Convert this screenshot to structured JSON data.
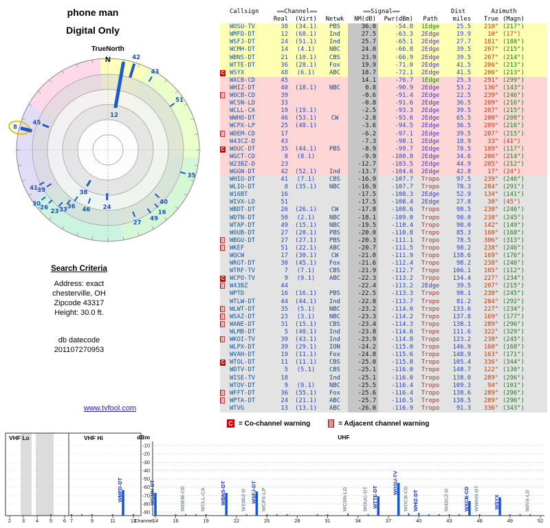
{
  "header": {
    "title": "phone man",
    "subtitle": "Digital Only"
  },
  "search": {
    "heading": "Search Criteria",
    "lines": [
      "Address: exact",
      "chesterville, OH",
      "Zipcode 43317",
      "Height: 30.0 ft."
    ],
    "datecode_label": "db datecode",
    "datecode": "201107270953",
    "link": "www.tvfool.com"
  },
  "legend": {
    "c": "C",
    "co": "= Co-channel warning",
    "adj": "= Adjacent channel warning"
  },
  "colors": {
    "accent_blue": "#1456c8",
    "warning_red": "#cc0000",
    "band_strong": "#ffffb4",
    "band_weak": "#ffd6d6",
    "band_fringe": "#e3e3e3"
  },
  "table": {
    "headers": {
      "callsign": "Callsign",
      "channel": "Channel",
      "signal": "Signal",
      "dist": "Dist",
      "azimuth": "Azimuth",
      "real": "Real",
      "virt": "(Virt)",
      "netwk": "Netwk",
      "nm": "NM(dB)",
      "pwr": "Pwr(dBm)",
      "path": "Path",
      "miles": "miles",
      "true": "True",
      "magn": "(Magn)",
      "dash": "▬▬"
    },
    "columns": [
      "marker",
      "callsign",
      "real",
      "virt",
      "netwk",
      "nm_db",
      "pwr_dbm",
      "path",
      "dist_miles",
      "azimuth_true",
      "azimuth_magn",
      "band"
    ],
    "rows": [
      [
        "",
        "WOSU-TV",
        "38",
        "(34.1)",
        "PBS",
        "36.0",
        "-54.8",
        "1Edge",
        "25.5",
        "210°",
        "(217°)",
        "y"
      ],
      [
        "",
        "WMFD-DT",
        "12",
        "(68.1)",
        "Ind",
        "27.5",
        "-63.3",
        "2Edge",
        "19.9",
        "10°",
        "(17°)",
        "y",
        "r"
      ],
      [
        "",
        "WSFJ-DT",
        "24",
        "(51.1)",
        "Ind",
        "25.7",
        "-65.1",
        "2Edge",
        "27.7",
        "181°",
        "(188°)",
        "y"
      ],
      [
        "",
        "WCMH-DT",
        "14",
        "(4.1)",
        "NBC",
        "24.0",
        "-66.8",
        "2Edge",
        "39.5",
        "207°",
        "(215°)",
        "y"
      ],
      [
        "",
        "WBNS-DT",
        "21",
        "(10.1)",
        "CBS",
        "23.9",
        "-66.9",
        "2Edge",
        "39.5",
        "207°",
        "(214°)",
        "y"
      ],
      [
        "",
        "WTTE-DT",
        "36",
        "(28.1)",
        "Fox",
        "19.9",
        "-71.0",
        "2Edge",
        "41.5",
        "206°",
        "(213°)",
        "y"
      ],
      [
        "C",
        "WSYX",
        "48",
        "(6.1)",
        "ABC",
        "18.7",
        "-72.1",
        "2Edge",
        "41.5",
        "206°",
        "(213°)",
        "y"
      ],
      [
        "",
        "WXCB-CD",
        "45",
        "",
        "",
        "14.1",
        "-76.7",
        "1Edge",
        "25.3",
        "291°",
        "(299°)",
        "p"
      ],
      [
        "",
        "WHIZ-DT",
        "40",
        "(18.1)",
        "NBC",
        "0.8",
        "-90.9",
        "2Edge",
        "53.2",
        "136°",
        "(143°)",
        "p"
      ],
      [
        "A",
        "WOCB-CD",
        "39",
        "",
        "",
        "-0.6",
        "-91.4",
        "2Edge",
        "22.5",
        "239°",
        "(246°)",
        "p"
      ],
      [
        "",
        "WCSN-LD",
        "33",
        "",
        "",
        "-0.8",
        "-91.6",
        "2Edge",
        "36.5",
        "209°",
        "(216°)",
        "p"
      ],
      [
        "",
        "WCLL-CA",
        "19",
        "(19.1)",
        "",
        "-2.5",
        "-93.3",
        "2Edge",
        "39.5",
        "207°",
        "(215°)",
        "p"
      ],
      [
        "",
        "WWHO-DT",
        "46",
        "(53.1)",
        "CW",
        "-2.8",
        "-93.6",
        "2Edge",
        "65.5",
        "200°",
        "(208°)",
        "p"
      ],
      [
        "",
        "WCPX-LP",
        "25",
        "(48.1)",
        "",
        "-3.6",
        "-94.5",
        "2Edge",
        "36.5",
        "209°",
        "(216°)",
        "p"
      ],
      [
        "A",
        "WDEM-CD",
        "17",
        "",
        "",
        "-6.2",
        "-97.1",
        "2Edge",
        "39.5",
        "207°",
        "(215°)",
        "p"
      ],
      [
        "",
        "W43CZ-D",
        "43",
        "",
        "",
        "-7.3",
        "-98.1",
        "2Edge",
        "18.9",
        "33°",
        "(41°)",
        "p",
        "r"
      ],
      [
        "C",
        "WOUC-DT",
        "35",
        "(44.1)",
        "PBS",
        "-8.9",
        "-99.7",
        "2Edge",
        "78.5",
        "109°",
        "(117°)",
        "p"
      ],
      [
        "",
        "WGCT-CD",
        "8",
        "(8.1)",
        "",
        "-9.9",
        "-100.8",
        "2Edge",
        "34.6",
        "206°",
        "(214°)",
        "p"
      ],
      [
        "",
        "W23BZ-D",
        "23",
        "",
        "",
        "-12.7",
        "-103.5",
        "2Edge",
        "44.9",
        "205°",
        "(212°)",
        "p"
      ],
      [
        "",
        "WGGN-DT",
        "42",
        "(52.1)",
        "Ind",
        "-13.7",
        "-104.6",
        "2Edge",
        "42.8",
        "17°",
        "(24°)",
        "p",
        "r"
      ],
      [
        "",
        "WHIO-DT",
        "41",
        "(7.1)",
        "CBS",
        "-16.9",
        "-107.7",
        "Tropo",
        "97.5",
        "239°",
        "(246°)",
        "g"
      ],
      [
        "",
        "WLIO-DT",
        "8",
        "(35.1)",
        "NBC",
        "-16.9",
        "-107.7",
        "Tropo",
        "78.3",
        "284°",
        "(291°)",
        "g"
      ],
      [
        "",
        "W16BT",
        "16",
        "",
        "",
        "-17.5",
        "-108.3",
        "2Edge",
        "52.9",
        "134°",
        "(141°)",
        "g"
      ],
      [
        "",
        "WIVX-LD",
        "51",
        "",
        "",
        "-17.5",
        "-108.4",
        "2Edge",
        "27.8",
        "38°",
        "(45°)",
        "g",
        "r"
      ],
      [
        "",
        "WBDT-DT",
        "26",
        "(26.1)",
        "CW",
        "-17.8",
        "-108.6",
        "Tropo",
        "98.5",
        "238°",
        "(246°)",
        "g"
      ],
      [
        "",
        "WDTN-DT",
        "50",
        "(2.1)",
        "NBC",
        "-18.1",
        "-109.0",
        "Tropo",
        "98.0",
        "238°",
        "(245°)",
        "g"
      ],
      [
        "",
        "WTAP-DT",
        "49",
        "(15.1)",
        "NBC",
        "-19.5",
        "-110.4",
        "Tropo",
        "98.0",
        "142°",
        "(149°)",
        "g"
      ],
      [
        "",
        "WOUB-DT",
        "27",
        "(20.1)",
        "PBS",
        "-20.0",
        "-110.8",
        "Tropo",
        "85.3",
        "160°",
        "(168°)",
        "g"
      ],
      [
        "A",
        "WBGU-DT",
        "27",
        "(27.1)",
        "PBS",
        "-20.3",
        "-111.1",
        "Tropo",
        "78.5",
        "306°",
        "(313°)",
        "g"
      ],
      [
        "A",
        "WKEF",
        "51",
        "(22.1)",
        "ABC",
        "-20.7",
        "-111.5",
        "Tropo",
        "98.2",
        "238°",
        "(246°)",
        "g"
      ],
      [
        "",
        "WQCW",
        "17",
        "(30.1)",
        "CW",
        "-21.0",
        "-111.9",
        "Tropo",
        "138.6",
        "169°",
        "(176°)",
        "g"
      ],
      [
        "",
        "WRGT-DT",
        "30",
        "(45.1)",
        "Fox",
        "-21.6",
        "-112.4",
        "Tropo",
        "98.2",
        "238°",
        "(246°)",
        "g"
      ],
      [
        "",
        "WTRF-TV",
        "7",
        "(7.1)",
        "CBS",
        "-21.9",
        "-112.7",
        "Tropo",
        "106.1",
        "105°",
        "(112°)",
        "g"
      ],
      [
        "C",
        "WCPO-TV",
        "9",
        "(9.1)",
        "ABC",
        "-22.3",
        "-113.2",
        "Tropo",
        "134.4",
        "227°",
        "(234°)",
        "g"
      ],
      [
        "A",
        "W43BZ",
        "44",
        "",
        "",
        "-22.4",
        "-113.2",
        "2Edge",
        "39.5",
        "207°",
        "(215°)",
        "g"
      ],
      [
        "",
        "WPTD",
        "16",
        "(16.1)",
        "PBS",
        "-22.5",
        "-113.3",
        "Tropo",
        "98.1",
        "238°",
        "(245°)",
        "g"
      ],
      [
        "",
        "WTLW-DT",
        "44",
        "(44.1)",
        "Ind",
        "-22.8",
        "-113.7",
        "Tropo",
        "81.2",
        "284°",
        "(292°)",
        "g"
      ],
      [
        "A",
        "WLWT-DT",
        "35",
        "(5.1)",
        "NBC",
        "-23.2",
        "-114.0",
        "Tropo",
        "133.6",
        "227°",
        "(234°)",
        "g"
      ],
      [
        "A",
        "WSAZ-DT",
        "23",
        "(3.1)",
        "NBC",
        "-23.3",
        "-114.2",
        "Tropo",
        "137.8",
        "169°",
        "(177°)",
        "g"
      ],
      [
        "A",
        "WANE-DT",
        "31",
        "(15.1)",
        "CBS",
        "-23.4",
        "-114.3",
        "Tropo",
        "138.1",
        "289°",
        "(296°)",
        "g"
      ],
      [
        "",
        "WLMB-DT",
        "5",
        "(40.1)",
        "Ind",
        "-23.8",
        "-114.6",
        "Tropo",
        "111.6",
        "322°",
        "(329°)",
        "g"
      ],
      [
        "A",
        "WKOI-TV",
        "39",
        "(43.1)",
        "Ind",
        "-23.9",
        "-114.8",
        "Tropo",
        "123.2",
        "238°",
        "(245°)",
        "g"
      ],
      [
        "",
        "WLPX-DT",
        "39",
        "(29.1)",
        "ION",
        "-24.2",
        "-115.0",
        "Tropo",
        "146.9",
        "160°",
        "(168°)",
        "g"
      ],
      [
        "",
        "WVAH-DT",
        "19",
        "(11.1)",
        "Fox",
        "-24.8",
        "-115.6",
        "Tropo",
        "148.9",
        "163°",
        "(171°)",
        "g"
      ],
      [
        "C",
        "WTOL-DT",
        "11",
        "(11.1)",
        "CBS",
        "-25.0",
        "-115.8",
        "Tropo",
        "105.4",
        "336°",
        "(344°)",
        "g"
      ],
      [
        "",
        "WDTV-DT",
        "5",
        "(5.1)",
        "CBS",
        "-25.1",
        "-116.0",
        "Tropo",
        "148.7",
        "122°",
        "(130°)",
        "g"
      ],
      [
        "",
        "WISE-TV",
        "18",
        "",
        "Ind",
        "-25.1",
        "-116.0",
        "Tropo",
        "138.0",
        "289°",
        "(296°)",
        "g"
      ],
      [
        "",
        "WTOV-DT",
        "9",
        "(9.1)",
        "NBC",
        "-25.5",
        "-116.4",
        "Tropo",
        "109.3",
        "94°",
        "(101°)",
        "g"
      ],
      [
        "A",
        "WFFT-DT",
        "36",
        "(55.1)",
        "Fox",
        "-25.6",
        "-116.4",
        "Tropo",
        "138.6",
        "289°",
        "(296°)",
        "g"
      ],
      [
        "A",
        "WPTA-DT",
        "24",
        "(21.1)",
        "ABC",
        "-25.7",
        "-116.5",
        "Tropo",
        "138.5",
        "289°",
        "(296°)",
        "g"
      ],
      [
        "",
        "WTVG",
        "13",
        "(13.1)",
        "ABC",
        "-26.0",
        "-116.9",
        "Tropo",
        "91.3",
        "336°",
        "(343°)",
        "g"
      ]
    ]
  },
  "radar": {
    "north": "N",
    "true_north": "TrueNorth",
    "sectors": [
      {
        "from": 300,
        "to": 355,
        "color": "#ffd9ea"
      },
      {
        "from": 355,
        "to": 25,
        "color": "#ffffbb"
      },
      {
        "from": 25,
        "to": 95,
        "color": "#eaffcc"
      },
      {
        "from": 95,
        "to": 170,
        "color": "#d6f7d6"
      },
      {
        "from": 170,
        "to": 235,
        "color": "#ccf3e0"
      },
      {
        "from": 235,
        "to": 300,
        "color": "#e2dcf7"
      }
    ]
  },
  "chart_data": [
    {
      "type": "scatter",
      "name": "azimuth-radar",
      "title": "TrueNorth azimuth plot",
      "units": {
        "angle": "degrees true",
        "radius": "relative signal"
      },
      "point_format": [
        "channel",
        "azimuth_deg",
        "r_inner",
        "r_outer",
        "stroke_w",
        "label_r",
        "highlighted"
      ],
      "points": [
        [
          "12",
          10,
          62,
          130,
          5,
          52,
          0
        ],
        [
          "42",
          17,
          110,
          131,
          4,
          141,
          0
        ],
        [
          "43",
          31,
          116,
          124,
          2,
          133,
          0
        ],
        [
          "51",
          55,
          110,
          118,
          2,
          127,
          0
        ],
        [
          "35",
          107,
          110,
          118,
          2,
          127,
          0
        ],
        [
          "40",
          133,
          94,
          102,
          2,
          111,
          0
        ],
        [
          "16",
          139,
          104,
          111,
          2,
          120,
          0
        ],
        [
          "49",
          146,
          103,
          111,
          2,
          120,
          0
        ],
        [
          "27",
          158,
          97,
          105,
          2,
          114,
          0
        ],
        [
          "24",
          181,
          63,
          73,
          3,
          83,
          0
        ],
        [
          "46",
          200,
          75,
          83,
          2,
          92,
          0
        ],
        [
          "38",
          210,
          51,
          61,
          3,
          71,
          0
        ],
        [
          "36",
          213,
          81,
          89,
          2,
          98,
          0
        ],
        [
          "33",
          217,
          91,
          99,
          2,
          108,
          0
        ],
        [
          "23",
          221,
          101,
          109,
          2,
          118,
          0
        ],
        [
          "26",
          228,
          109,
          116,
          2,
          125,
          0
        ],
        [
          "30",
          233,
          114,
          121,
          2,
          130,
          0
        ],
        [
          "39",
          239,
          96,
          104,
          2,
          113,
          0
        ],
        [
          "41",
          243,
          104,
          112,
          2,
          121,
          0
        ],
        [
          "8",
          284,
          114,
          131,
          5,
          139,
          1
        ],
        [
          "45",
          291,
          92,
          102,
          3,
          111,
          0
        ]
      ]
    },
    {
      "type": "bar",
      "name": "signal-spectrum",
      "ylabel": "dBm",
      "xlabel": "Channel",
      "ylim": [
        -90,
        -10
      ],
      "y_ticks": [
        -10,
        -20,
        -30,
        -40,
        -50,
        -60,
        -70,
        -80,
        -90
      ],
      "bands": [
        {
          "label": "VHF Lo",
          "channels": [
            2,
            6
          ],
          "ticks": [
            2,
            3,
            4,
            5,
            6
          ]
        },
        {
          "label": "VHF Hi",
          "channels": [
            7,
            13
          ],
          "ticks": [
            7,
            9,
            11,
            13
          ]
        },
        {
          "label": "UHF",
          "channels": [
            14,
            52
          ],
          "ticks": [
            14,
            16,
            19,
            22,
            25,
            28,
            31,
            34,
            37,
            40,
            43,
            46,
            49,
            52
          ]
        }
      ],
      "bar_format": [
        "channel",
        "dbm",
        "callsign_label"
      ],
      "bars": [
        [
          5,
          -114.6,
          ""
        ],
        [
          7,
          -112.7,
          ""
        ],
        [
          8,
          -100.8,
          ""
        ],
        [
          9,
          -113.2,
          ""
        ],
        [
          11,
          -115.8,
          ""
        ],
        [
          12,
          -63.3,
          "WMFD-DT"
        ],
        [
          13,
          -116.9,
          ""
        ],
        [
          14,
          -66.8,
          "WCMH-DT"
        ],
        [
          16,
          -108.3,
          ""
        ],
        [
          17,
          -97.1,
          "WDEM-CD"
        ],
        [
          18,
          -116.0,
          ""
        ],
        [
          19,
          -93.3,
          "WCLL-CA"
        ],
        [
          21,
          -66.9,
          "WBNS-DT"
        ],
        [
          23,
          -103.5,
          "W23BZ-D"
        ],
        [
          24,
          -65.1,
          "WSFJ-DT"
        ],
        [
          25,
          -94.5,
          "WCPX-LP"
        ],
        [
          26,
          -108.6,
          ""
        ],
        [
          27,
          -110.8,
          ""
        ],
        [
          30,
          -112.4,
          ""
        ],
        [
          31,
          -114.3,
          ""
        ],
        [
          33,
          -91.6,
          "WCSN-LD"
        ],
        [
          35,
          -99.7,
          "WOUC-DT"
        ],
        [
          36,
          -71.0,
          "WTTE-DT"
        ],
        [
          38,
          -54.8,
          "WOSU-TV"
        ],
        [
          39,
          -91.4,
          "WOCB-CD"
        ],
        [
          40,
          -90.9,
          "WHIZ-DT"
        ],
        [
          41,
          -107.7,
          ""
        ],
        [
          42,
          -104.6,
          ""
        ],
        [
          43,
          -98.1,
          "W43CZ-D"
        ],
        [
          44,
          -113.2,
          ""
        ],
        [
          45,
          -76.7,
          "WXCB-CD"
        ],
        [
          46,
          -93.6,
          "WWHO-DT"
        ],
        [
          48,
          -72.1,
          "WSYX"
        ],
        [
          49,
          -110.4,
          ""
        ],
        [
          50,
          -109.0,
          ""
        ],
        [
          51,
          -108.4,
          "WIVX-LD"
        ]
      ]
    }
  ]
}
